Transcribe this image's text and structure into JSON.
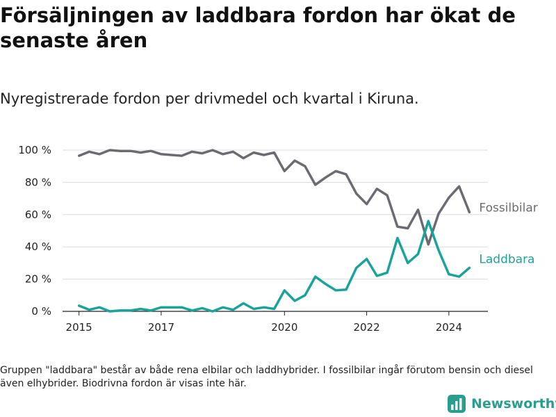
{
  "header": {
    "title": "Försäljningen av laddbara fordon har ökat de senaste åren",
    "subtitle": "Nyregistrerade fordon per drivmedel och kvartal i Kiruna."
  },
  "footer": {
    "note": "Gruppen \"laddbara\" består av både rena elbilar och laddhybrider. I fossilbilar ingår förutom bensin och diesel även elhybrider. Biodrivna fordon är visas inte här.",
    "brand": "Newsworthy",
    "brand_color": "#2a9d8f"
  },
  "chart_data": {
    "type": "line",
    "title": "Försäljningen av laddbara fordon har ökat de senaste åren",
    "subtitle": "Nyregistrerade fordon per drivmedel och kvartal i Kiruna.",
    "xlabel": "",
    "ylabel": "",
    "x": [
      2015.0,
      2015.25,
      2015.5,
      2015.75,
      2016.0,
      2016.25,
      2016.5,
      2016.75,
      2017.0,
      2017.25,
      2017.5,
      2017.75,
      2018.0,
      2018.25,
      2018.5,
      2018.75,
      2019.0,
      2019.25,
      2019.5,
      2019.75,
      2020.0,
      2020.25,
      2020.5,
      2020.75,
      2021.0,
      2021.25,
      2021.5,
      2021.75,
      2022.0,
      2022.25,
      2022.5,
      2022.75,
      2023.0,
      2023.25,
      2023.5,
      2023.75,
      2024.0,
      2024.25,
      2024.5
    ],
    "xlim": [
      2014.6,
      2024.95
    ],
    "ylim": [
      0,
      100
    ],
    "yticks": [
      0,
      20,
      40,
      60,
      80,
      100
    ],
    "ytick_labels": [
      "0 %",
      "20 %",
      "40 %",
      "60 %",
      "80 %",
      "100 %"
    ],
    "xticks": [
      2015,
      2017,
      2020,
      2022,
      2024
    ],
    "xtick_labels": [
      "2015",
      "2017",
      "2020",
      "2022",
      "2024"
    ],
    "grid": true,
    "legend": "inline labels at line ends (right)",
    "series": [
      {
        "name": "Fossilbilar",
        "color": "#6b6b72",
        "values": [
          96.5,
          99,
          97.5,
          100,
          99.5,
          99.5,
          98.5,
          99.5,
          97.5,
          97,
          96.5,
          99,
          98,
          100,
          97.5,
          99,
          95,
          98.5,
          97,
          98.5,
          87,
          93.5,
          90,
          78.5,
          83,
          87,
          85,
          73,
          66.5,
          76,
          72,
          52.5,
          51.5,
          63,
          41.5,
          60.5,
          70.5,
          77.5,
          61.5
        ]
      },
      {
        "name": "Laddbara",
        "color": "#1aa39a",
        "values": [
          3.5,
          1,
          2.5,
          0,
          0.5,
          0.5,
          1.5,
          0.5,
          2.5,
          2.5,
          2.5,
          0.5,
          2,
          0,
          2.5,
          1,
          5,
          1.5,
          2.5,
          1.5,
          13,
          6.5,
          10,
          21.5,
          17,
          13,
          13.5,
          27,
          32.5,
          22,
          24,
          45.5,
          30,
          35.5,
          56,
          38,
          23,
          21.5,
          27
        ]
      }
    ]
  }
}
